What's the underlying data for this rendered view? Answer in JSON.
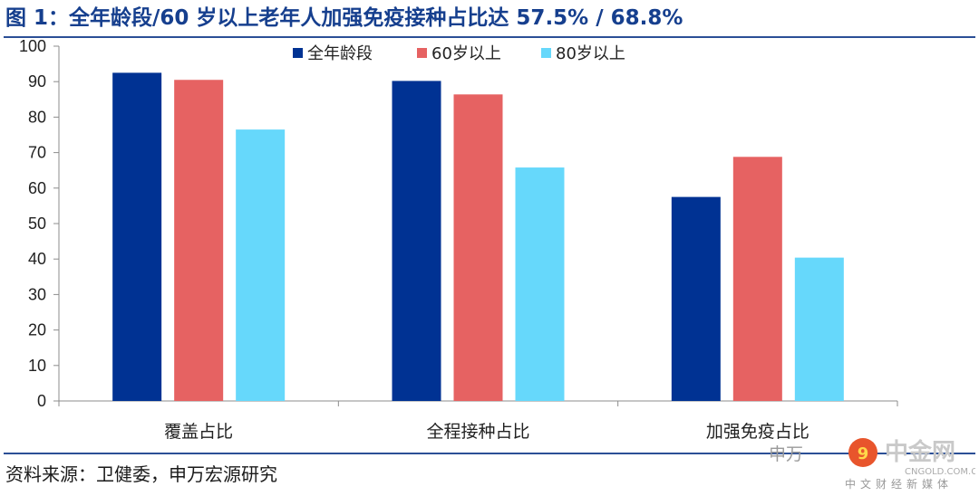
{
  "title": "图 1：全年龄段/60 岁以上老年人加强免疫接种占比达 57.5% / 68.8%",
  "source": "资料来源：卫健委，申万宏源研究",
  "watermark": {
    "brand": "中金网",
    "domain": "CNGOLD.COM.CN",
    "tagline": "中文财经新媒体",
    "partial": "申万"
  },
  "colors": {
    "series1": "#003293",
    "series2": "#e66262",
    "series3": "#66d8fb",
    "accent": "#163f8e"
  },
  "chart_data": {
    "type": "bar",
    "categories": [
      "覆盖占比",
      "全程接种占比",
      "加强免疫占比"
    ],
    "series": [
      {
        "name": "全年龄段",
        "values": [
          92.5,
          90.2,
          57.5
        ]
      },
      {
        "name": "60岁以上",
        "values": [
          90.5,
          86.4,
          68.8
        ]
      },
      {
        "name": "80岁以上",
        "values": [
          76.5,
          65.8,
          40.4
        ]
      }
    ],
    "ylim": [
      0,
      100
    ],
    "yticks": [
      0,
      10,
      20,
      30,
      40,
      50,
      60,
      70,
      80,
      90,
      100
    ],
    "grid": false,
    "legend": "top-center"
  }
}
